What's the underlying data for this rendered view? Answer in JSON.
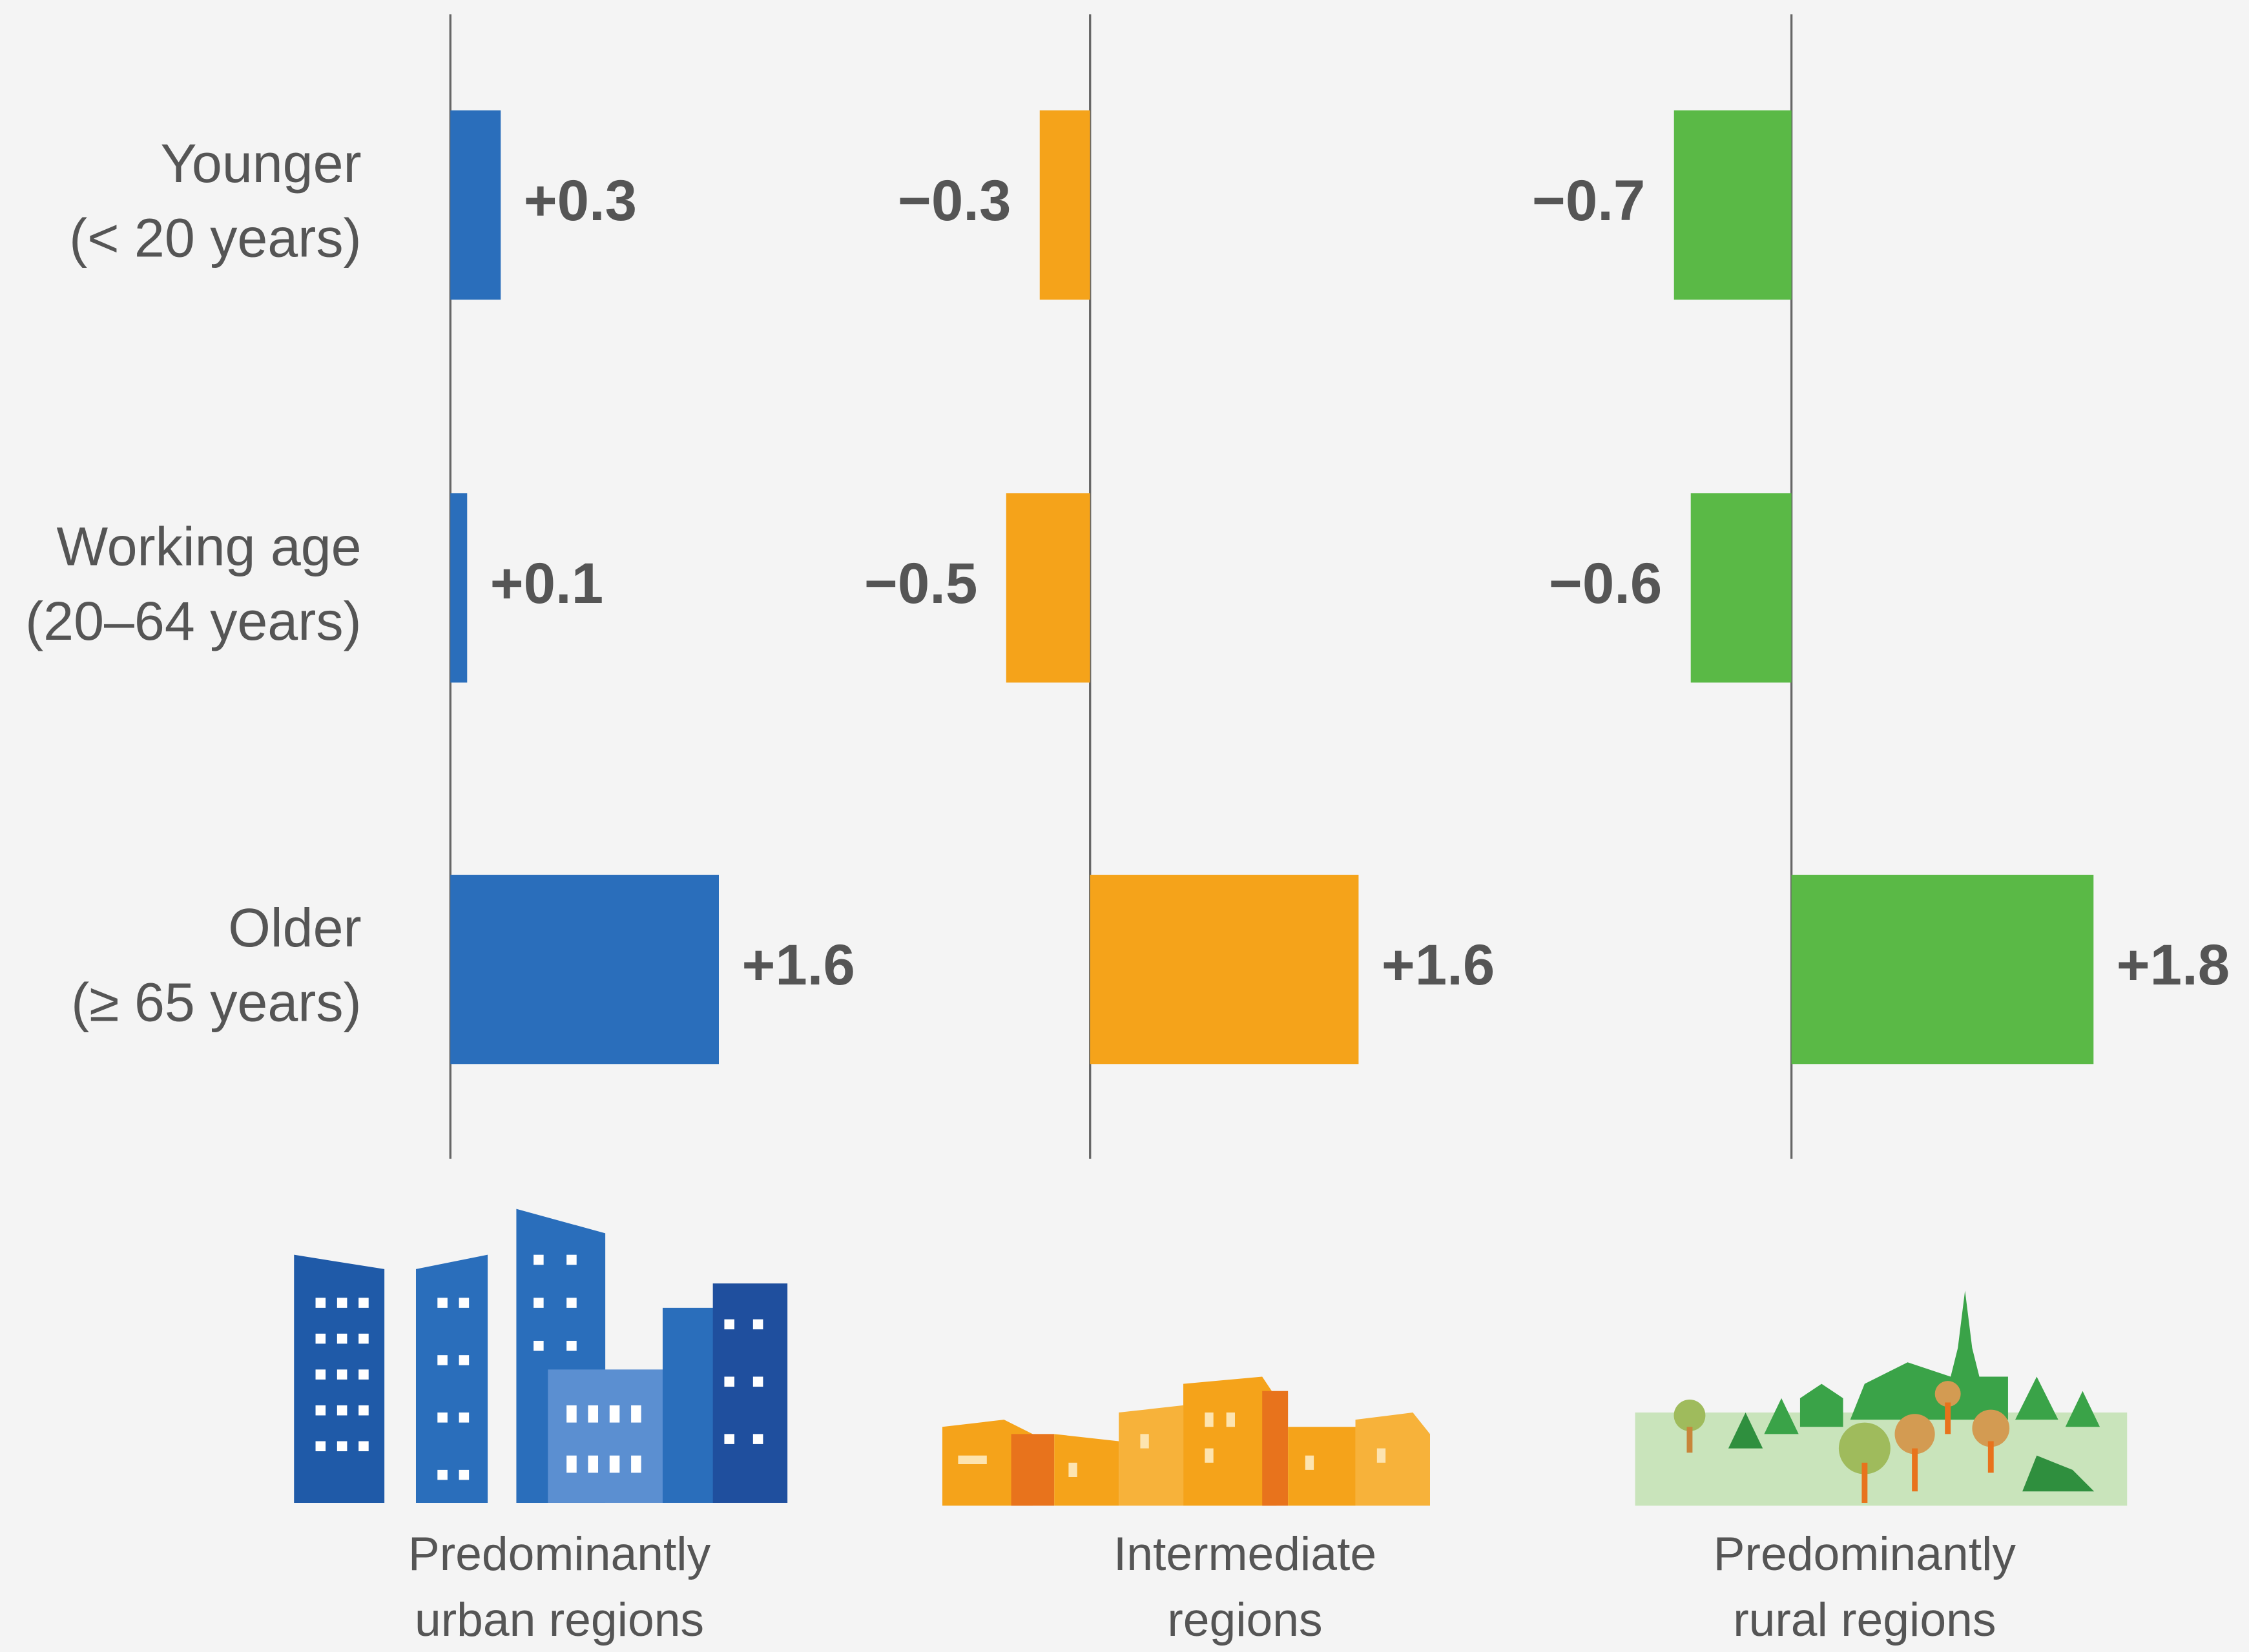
{
  "chart_data": {
    "type": "bar",
    "categories": [
      [
        "Younger",
        "(< 20 years)"
      ],
      [
        "Working age",
        "(20–64 years)"
      ],
      [
        "Older",
        "(≥ 65 years)"
      ]
    ],
    "series": [
      {
        "name": [
          "Predominantly",
          "urban regions"
        ],
        "color": "#2a6ebb",
        "values": [
          0.3,
          0.1,
          1.6
        ],
        "value_labels": [
          "+0.3",
          "+0.1",
          "+1.6"
        ]
      },
      {
        "name": [
          "Intermediate",
          "regions"
        ],
        "color": "#f5a31a",
        "values": [
          -0.3,
          -0.5,
          1.6
        ],
        "value_labels": [
          "−0.3",
          "−0.5",
          "+1.6"
        ]
      },
      {
        "name": [
          "Predominantly",
          "rural regions"
        ],
        "color": "#5ab946",
        "values": [
          -0.7,
          -0.6,
          1.8
        ],
        "value_labels": [
          "−0.7",
          "−0.6",
          "+1.8"
        ]
      }
    ]
  }
}
